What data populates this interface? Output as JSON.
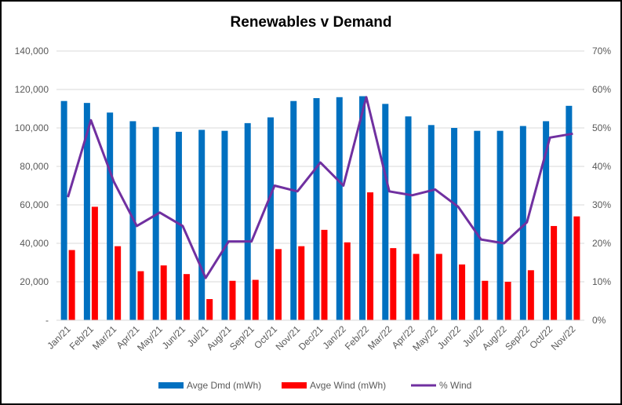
{
  "chart_data": {
    "type": "bar",
    "title": "Renewables v Demand",
    "categories": [
      "Jan/21",
      "Feb/21",
      "Mar/21",
      "Apr/21",
      "May/21",
      "Jun/21",
      "Jul/21",
      "Aug/21",
      "Sep/21",
      "Oct/21",
      "Nov/21",
      "Dec/21",
      "Jan/22",
      "Feb/22",
      "Mar/22",
      "Apr/22",
      "May/22",
      "Jun/22",
      "Jul/22",
      "Aug/22",
      "Sep/22",
      "Oct/22",
      "Nov/22"
    ],
    "series": [
      {
        "name": "Avge Dmd (mWh)",
        "type": "bar",
        "axis": "left",
        "color": "#0070C0",
        "values": [
          114000,
          113000,
          108000,
          103500,
          100500,
          98000,
          99000,
          98500,
          102500,
          105500,
          114000,
          115500,
          116000,
          116500,
          112500,
          106000,
          101500,
          100000,
          98500,
          98500,
          101000,
          103500,
          111500
        ]
      },
      {
        "name": "Avge Wind (mWh)",
        "type": "bar",
        "axis": "left",
        "color": "#FF0000",
        "values": [
          36500,
          59000,
          38500,
          25500,
          28500,
          24000,
          11000,
          20500,
          21000,
          37000,
          38500,
          47000,
          40500,
          66500,
          37500,
          34500,
          34500,
          29000,
          20500,
          20000,
          26000,
          49000,
          54000
        ]
      },
      {
        "name": "% Wind",
        "type": "line",
        "axis": "right",
        "color": "#7030A0",
        "values": [
          32,
          52,
          36,
          24.5,
          28,
          24.5,
          11,
          20.5,
          20.5,
          35,
          33.5,
          41,
          35,
          58,
          33.5,
          32.5,
          34,
          29.5,
          21,
          20,
          25.5,
          47.5,
          48.5
        ]
      }
    ],
    "y_left": {
      "min": 0,
      "max": 140000,
      "ticks": [
        "-",
        "20,000",
        "40,000",
        "60,000",
        "80,000",
        "100,000",
        "120,000",
        "140,000"
      ]
    },
    "y_right": {
      "min": 0,
      "max": 70,
      "ticks": [
        "0%",
        "10%",
        "20%",
        "30%",
        "40%",
        "50%",
        "60%",
        "70%"
      ]
    },
    "grid": true,
    "legend": "bottom"
  }
}
